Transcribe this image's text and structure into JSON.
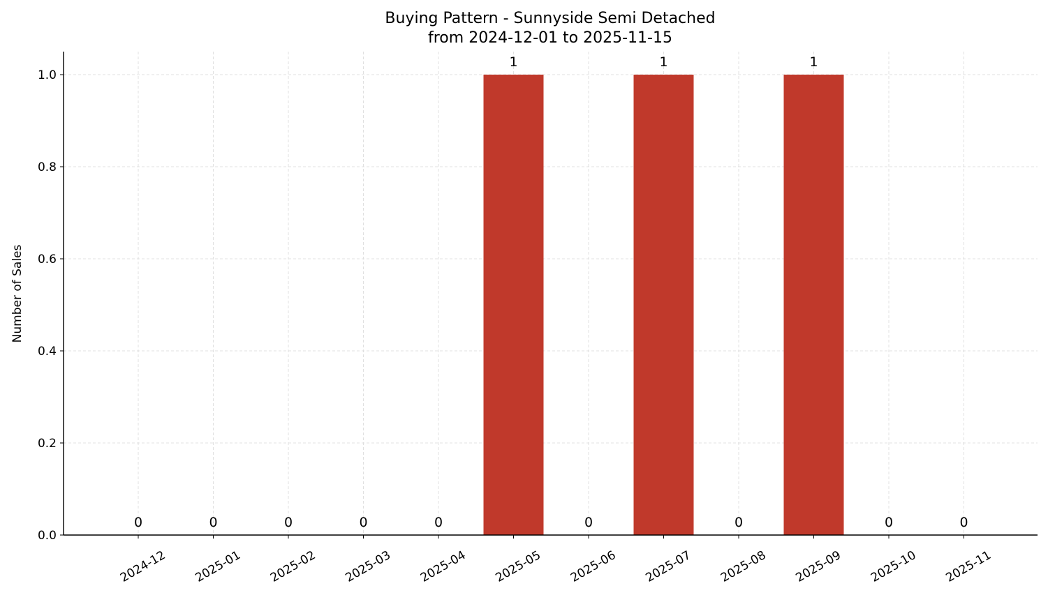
{
  "chart_data": {
    "type": "bar",
    "title": "Buying Pattern - Sunnyside Semi Detached",
    "subtitle": "from 2024-12-01 to 2025-11-15",
    "xlabel": "",
    "ylabel": "Number of Sales",
    "categories": [
      "2024-12",
      "2025-01",
      "2025-02",
      "2025-03",
      "2025-04",
      "2025-05",
      "2025-06",
      "2025-07",
      "2025-08",
      "2025-09",
      "2025-10",
      "2025-11"
    ],
    "values": [
      0,
      0,
      0,
      0,
      0,
      1,
      0,
      1,
      0,
      1,
      0,
      0
    ],
    "data_labels": [
      "0",
      "0",
      "0",
      "0",
      "0",
      "1",
      "0",
      "1",
      "0",
      "1",
      "0",
      "0"
    ],
    "ylim": [
      0,
      1.05
    ],
    "yticks": [
      "0.0",
      "0.2",
      "0.4",
      "0.6",
      "0.8",
      "1.0"
    ],
    "ytick_values": [
      0,
      0.2,
      0.4,
      0.6,
      0.8,
      1.0
    ],
    "grid": true,
    "bar_color": "#c0392b",
    "legend": null
  }
}
